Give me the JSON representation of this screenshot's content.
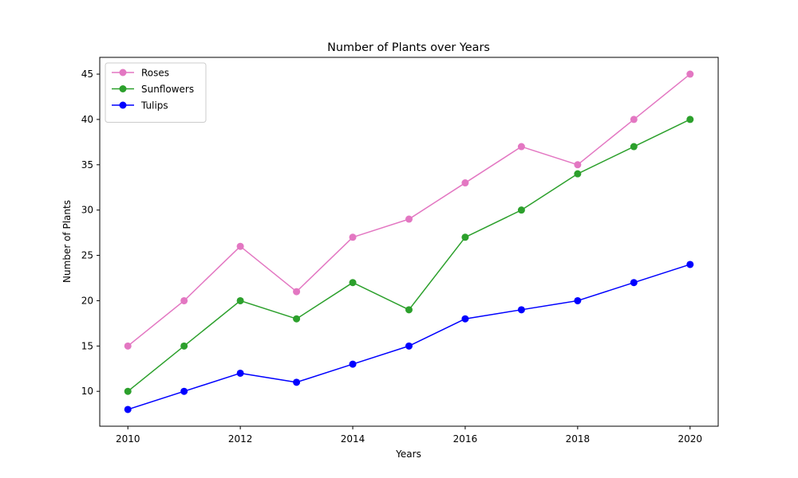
{
  "chart_data": {
    "type": "line",
    "title": "Number of Plants over Years",
    "xlabel": "Years",
    "ylabel": "Number of Plants",
    "x": [
      2010,
      2011,
      2012,
      2013,
      2014,
      2015,
      2016,
      2017,
      2018,
      2019,
      2020
    ],
    "xlim": [
      2009.5,
      2020.5
    ],
    "ylim": [
      6.15,
      46.85
    ],
    "xticks": [
      2010,
      2012,
      2014,
      2016,
      2018,
      2020
    ],
    "yticks": [
      10,
      15,
      20,
      25,
      30,
      35,
      40,
      45
    ],
    "grid": false,
    "legend_position": "upper-left",
    "series": [
      {
        "name": "Roses",
        "color": "#e377c2",
        "marker": "circle",
        "values": [
          15,
          20,
          26,
          21,
          27,
          29,
          33,
          37,
          35,
          40,
          45
        ]
      },
      {
        "name": "Sunflowers",
        "color": "#2ca02c",
        "marker": "circle",
        "values": [
          10,
          15,
          20,
          18,
          22,
          19,
          27,
          30,
          34,
          37,
          40
        ]
      },
      {
        "name": "Tulips",
        "color": "#0000ff",
        "marker": "circle",
        "values": [
          8,
          10,
          12,
          11,
          13,
          15,
          18,
          19,
          20,
          22,
          24
        ]
      }
    ]
  }
}
